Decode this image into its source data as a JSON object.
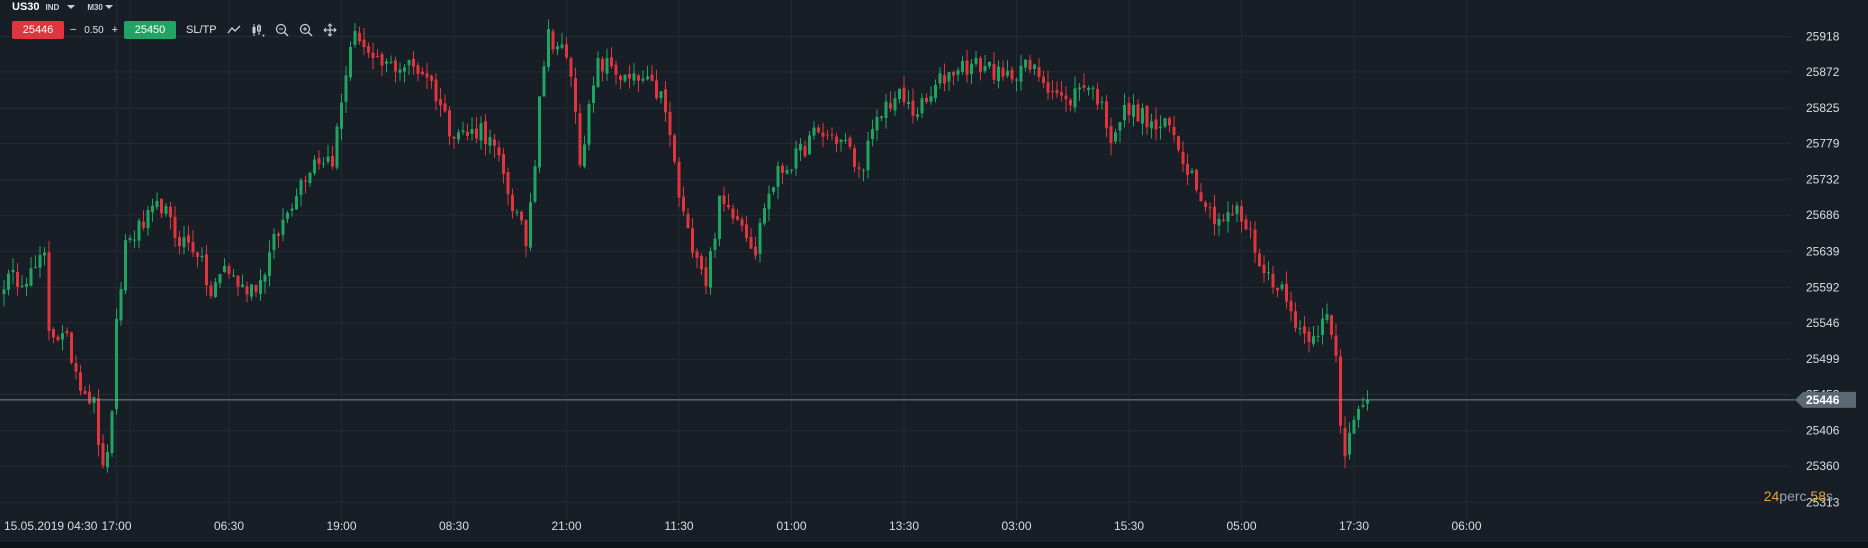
{
  "toolbar": {
    "symbol": "US30",
    "symbol_type": "IND",
    "timeframe": "M30",
    "sell_price": "25446",
    "minus": "−",
    "quantity": "0.50",
    "plus": "+",
    "buy_price": "25450",
    "sltp_label": "SL/TP",
    "tools": [
      "line-chart-icon",
      "candles-icon",
      "zoom-out-icon",
      "zoom-in-icon",
      "crosshair-icon"
    ]
  },
  "countdown": {
    "minutes": "24",
    "minutes_unit": "perc",
    "seconds": "58",
    "seconds_unit": "s"
  },
  "colors": {
    "background": "#171e26",
    "up": "#1fa463",
    "down": "#e0353e",
    "current_line": "#8fa0ad",
    "grid": "#222b34"
  },
  "chart_data": {
    "type": "candlestick",
    "symbol": "US30",
    "timeframe": "M30",
    "current_price": 25446,
    "y_ticks": [
      25313,
      25360,
      25406,
      25453,
      25499,
      25546,
      25592,
      25639,
      25686,
      25732,
      25779,
      25825,
      25872,
      25918
    ],
    "ylim": [
      25290,
      25955
    ],
    "x_labels": [
      "15.05.2019 04:30",
      "17:00",
      "06:30",
      "19:00",
      "08:30",
      "21:00",
      "11:30",
      "01:00",
      "13:30",
      "03:00",
      "15:30",
      "05:00",
      "17:30",
      "06:00"
    ],
    "x_label_candle_index": [
      0,
      25,
      50,
      75,
      100,
      125,
      150,
      175,
      200,
      225,
      250,
      275,
      300,
      325
    ],
    "candle_count_visible": 304,
    "anchors": [
      [
        0,
        25600
      ],
      [
        6,
        25610
      ],
      [
        9,
        25630
      ],
      [
        10,
        25540
      ],
      [
        14,
        25520
      ],
      [
        17,
        25470
      ],
      [
        20,
        25440
      ],
      [
        22,
        25350
      ],
      [
        24,
        25420
      ],
      [
        25,
        25540
      ],
      [
        27,
        25650
      ],
      [
        32,
        25680
      ],
      [
        35,
        25700
      ],
      [
        38,
        25660
      ],
      [
        43,
        25640
      ],
      [
        46,
        25580
      ],
      [
        49,
        25620
      ],
      [
        53,
        25590
      ],
      [
        57,
        25600
      ],
      [
        60,
        25650
      ],
      [
        63,
        25690
      ],
      [
        65,
        25720
      ],
      [
        69,
        25760
      ],
      [
        73,
        25760
      ],
      [
        75,
        25830
      ],
      [
        77,
        25910
      ],
      [
        79,
        25920
      ],
      [
        82,
        25880
      ],
      [
        86,
        25880
      ],
      [
        90,
        25880
      ],
      [
        94,
        25870
      ],
      [
        97,
        25830
      ],
      [
        99,
        25800
      ],
      [
        103,
        25790
      ],
      [
        106,
        25800
      ],
      [
        109,
        25770
      ],
      [
        113,
        25700
      ],
      [
        116,
        25650
      ],
      [
        118,
        25760
      ],
      [
        119,
        25850
      ],
      [
        121,
        25920
      ],
      [
        124,
        25900
      ],
      [
        126,
        25870
      ],
      [
        128,
        25760
      ],
      [
        130,
        25820
      ],
      [
        132,
        25880
      ],
      [
        135,
        25880
      ],
      [
        138,
        25860
      ],
      [
        142,
        25860
      ],
      [
        146,
        25840
      ],
      [
        148,
        25790
      ],
      [
        150,
        25710
      ],
      [
        152,
        25660
      ],
      [
        154,
        25640
      ],
      [
        156,
        25600
      ],
      [
        159,
        25700
      ],
      [
        163,
        25690
      ],
      [
        167,
        25640
      ],
      [
        169,
        25700
      ],
      [
        172,
        25740
      ],
      [
        176,
        25760
      ],
      [
        180,
        25790
      ],
      [
        183,
        25790
      ],
      [
        187,
        25780
      ],
      [
        190,
        25740
      ],
      [
        193,
        25790
      ],
      [
        196,
        25830
      ],
      [
        199,
        25840
      ],
      [
        202,
        25820
      ],
      [
        205,
        25830
      ],
      [
        208,
        25860
      ],
      [
        212,
        25880
      ],
      [
        216,
        25880
      ],
      [
        219,
        25880
      ],
      [
        222,
        25860
      ],
      [
        226,
        25880
      ],
      [
        230,
        25870
      ],
      [
        233,
        25850
      ],
      [
        236,
        25830
      ],
      [
        240,
        25860
      ],
      [
        243,
        25840
      ],
      [
        246,
        25790
      ],
      [
        249,
        25820
      ],
      [
        252,
        25820
      ],
      [
        255,
        25800
      ],
      [
        259,
        25800
      ],
      [
        262,
        25760
      ],
      [
        265,
        25730
      ],
      [
        268,
        25690
      ],
      [
        271,
        25680
      ],
      [
        274,
        25690
      ],
      [
        277,
        25660
      ],
      [
        280,
        25610
      ],
      [
        283,
        25600
      ],
      [
        286,
        25560
      ],
      [
        289,
        25530
      ],
      [
        292,
        25540
      ],
      [
        294,
        25550
      ],
      [
        296,
        25500
      ],
      [
        297,
        25410
      ],
      [
        298,
        25380
      ],
      [
        300,
        25430
      ],
      [
        301,
        25446
      ]
    ]
  }
}
